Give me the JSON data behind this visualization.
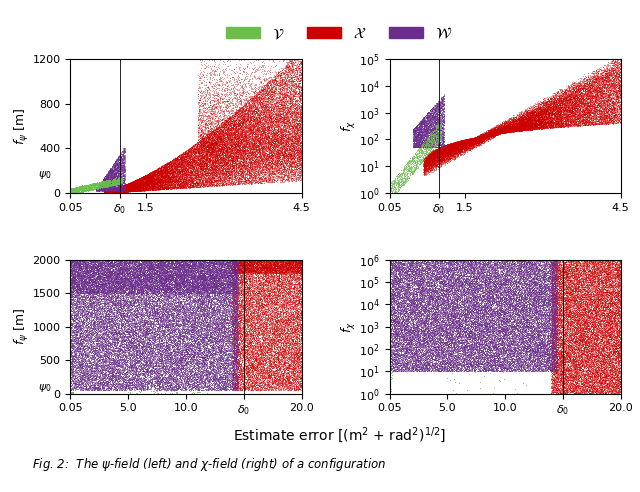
{
  "fig_width": 6.4,
  "fig_height": 4.92,
  "dpi": 100,
  "colors": {
    "green": "#6abf4b",
    "red": "#cc0000",
    "purple": "#6b2d8b"
  },
  "top_left": {
    "xlim": [
      0.05,
      4.5
    ],
    "ylim": [
      0,
      1200
    ],
    "yticks": [
      0,
      400,
      800,
      1200
    ],
    "xticks": [
      0.05,
      1.0,
      1.5,
      4.5
    ],
    "xticklabels": [
      "0.05",
      "$\\delta_0$",
      "1.5",
      "4.5"
    ],
    "delta0_x": 1.0,
    "vline_x": 1.0
  },
  "top_right": {
    "xlim": [
      0.05,
      4.5
    ],
    "ylim_log": [
      1.0,
      100000.0
    ],
    "xticks": [
      0.05,
      1.0,
      1.5,
      4.5
    ],
    "xticklabels": [
      "0.05",
      "$\\delta_0$",
      "1.5",
      "4.5"
    ],
    "delta0_x": 1.0,
    "vline_x": 1.0
  },
  "bottom_left": {
    "xlim": [
      0.05,
      20.0
    ],
    "ylim": [
      0,
      2000
    ],
    "yticks": [
      0,
      500,
      1000,
      1500,
      2000
    ],
    "xticks": [
      0.05,
      5.0,
      10.0,
      15.0,
      20.0
    ],
    "xticklabels": [
      "0.05",
      "5.0",
      "10.0",
      "$\\delta_0$",
      "20.0"
    ],
    "delta0_x": 15.0,
    "vline_x": 15.0
  },
  "bottom_right": {
    "xlim": [
      0.05,
      20.0
    ],
    "ylim_log": [
      1.0,
      1000000.0
    ],
    "xticks": [
      0.05,
      5.0,
      10.0,
      15.0,
      20.0
    ],
    "xticklabels": [
      "0.05",
      "5.0",
      "10.0",
      "$\\delta_0$",
      "20.0"
    ],
    "delta0_x": 15.0,
    "vline_x": 15.0
  }
}
